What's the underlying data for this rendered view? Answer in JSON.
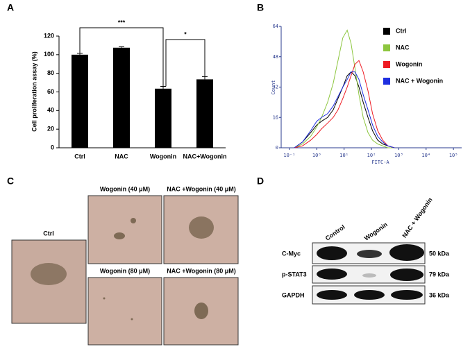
{
  "chart_data": [
    {
      "type": "bar",
      "panel": "A",
      "ylabel": "Cell proliferation assay (%)",
      "categories": [
        "Ctrl",
        "NAC",
        "Wogonin",
        "NAC+Wogonin"
      ],
      "values": [
        100,
        107.5,
        63.5,
        73.5
      ],
      "errors": [
        1.5,
        1,
        2.5,
        3
      ],
      "color": "#000000",
      "ylim": [
        0,
        120
      ],
      "yticks": [
        0,
        20,
        40,
        60,
        80,
        100,
        120
      ],
      "annotations": [
        "***",
        "*"
      ]
    },
    {
      "type": "line",
      "panel": "B",
      "xlabel": "FITC-A",
      "ylabel": "Count",
      "xscale": "log",
      "x": [
        0.15,
        0.3,
        0.6,
        1,
        1.5,
        2.5,
        4,
        6,
        9,
        13,
        18,
        25,
        35,
        50,
        75,
        110,
        170,
        260,
        400,
        700
      ],
      "series": [
        {
          "name": "Ctrl",
          "color": "#000000",
          "values": [
            0,
            3,
            8,
            12,
            14,
            16,
            20,
            26,
            32,
            38,
            40,
            38,
            32,
            24,
            16,
            9,
            4,
            2,
            1,
            0
          ]
        },
        {
          "name": "NAC",
          "color": "#8dc63f",
          "values": [
            0,
            2,
            6,
            11,
            16,
            24,
            34,
            46,
            58,
            62,
            55,
            42,
            28,
            16,
            8,
            4,
            2,
            1,
            0,
            0
          ]
        },
        {
          "name": "Wogonin",
          "color": "#ee1c24",
          "values": [
            0,
            1,
            4,
            7,
            10,
            13,
            16,
            20,
            26,
            32,
            38,
            44,
            46,
            40,
            30,
            18,
            9,
            4,
            1,
            0
          ]
        },
        {
          "name": "NAC + Wogonin",
          "color": "#1f2fe0",
          "values": [
            0,
            3,
            9,
            14,
            16,
            18,
            22,
            27,
            32,
            36,
            40,
            40,
            36,
            28,
            20,
            12,
            6,
            3,
            1,
            0
          ]
        }
      ],
      "xlim": [
        0.05,
        200000
      ],
      "xticks": [
        {
          "value": 0.1,
          "label": "10⁻¹"
        },
        {
          "value": 1,
          "label": "10⁰"
        },
        {
          "value": 10,
          "label": "10¹"
        },
        {
          "value": 100,
          "label": "10²"
        },
        {
          "value": 1000,
          "label": "10³"
        },
        {
          "value": 10000,
          "label": "10⁴"
        },
        {
          "value": 100000,
          "label": "10⁵"
        }
      ],
      "ylim": [
        0,
        64
      ],
      "yticks": [
        0,
        16,
        32,
        48,
        64
      ]
    }
  ],
  "panel_c": {
    "letter": "C",
    "images": [
      "Ctrl",
      "Wogonin (40 μM)",
      "NAC +Wogonin (40 μM)",
      "Wogonin (80 μM)",
      "NAC +Wogonin (80 μM)"
    ]
  },
  "panel_d": {
    "letter": "D",
    "lanes": [
      "Control",
      "Wogonin",
      "NAC + Wogonin"
    ],
    "rows": [
      {
        "protein": "C-Myc",
        "size": "50 kDa"
      },
      {
        "protein": "p-STAT3",
        "size": "79 kDa"
      },
      {
        "protein": "GAPDH",
        "size": "36 kDa"
      }
    ]
  }
}
